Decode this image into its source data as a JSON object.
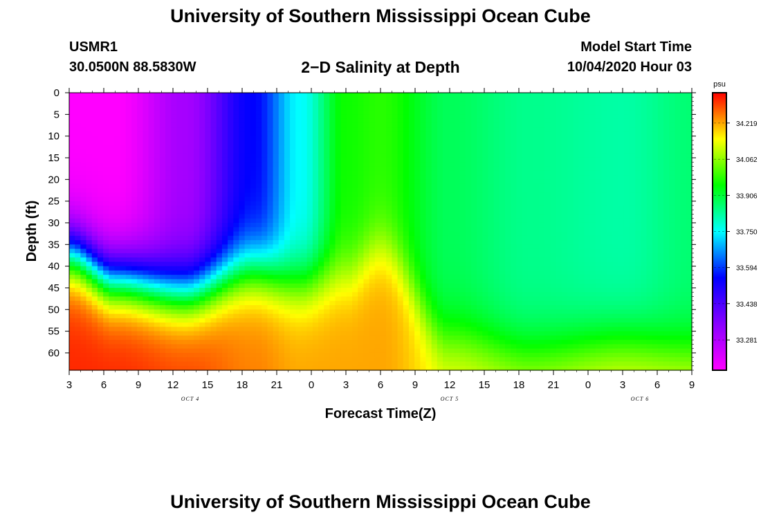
{
  "page": {
    "top_title": "University of Southern Mississippi Ocean Cube",
    "bottom_title": "University of Southern Mississippi Ocean Cube",
    "station_id": "USMR1",
    "station_coords": "30.0500N 88.5830W",
    "chart_title": "2−D Salinity at Depth",
    "model_start_label": "Model Start Time",
    "model_start_value": "10/04/2020 Hour 03"
  },
  "colors": {
    "colorbar_stops": [
      "#ff00ff",
      "#8800ff",
      "#0000ff",
      "#00ffff",
      "#00ff00",
      "#ffff00",
      "#ff0000"
    ]
  },
  "chart_data": {
    "type": "heatmap",
    "title": "2−D Salinity at Depth",
    "xlabel": "Forecast Time(Z)",
    "ylabel": "Depth (ft)",
    "x_tick_labels": [
      "3",
      "6",
      "9",
      "12",
      "15",
      "18",
      "21",
      "0",
      "3",
      "6",
      "9",
      "12",
      "15",
      "18",
      "21",
      "0",
      "3",
      "6",
      "9"
    ],
    "x_date_labels": [
      {
        "label": "OCT 4",
        "tick_index": 3.5
      },
      {
        "label": "OCT 5",
        "tick_index": 11
      },
      {
        "label": "OCT 6",
        "tick_index": 16.5
      }
    ],
    "x_range_hours": [
      0,
      54
    ],
    "y_ticks": [
      0,
      5,
      10,
      15,
      20,
      25,
      30,
      35,
      40,
      45,
      50,
      55,
      60
    ],
    "y_range_ft": [
      0,
      64
    ],
    "y_inverted": true,
    "colorbar": {
      "unit": "psu",
      "ticks": [
        "34.219",
        "34.062",
        "33.906",
        "33.750",
        "33.594",
        "33.438",
        "33.281"
      ],
      "tick_values": [
        34.219,
        34.062,
        33.906,
        33.75,
        33.594,
        33.438,
        33.281
      ],
      "range": [
        33.15,
        34.35
      ]
    },
    "field_profiles": [
      {
        "hour": 0,
        "s_surface": 33.15,
        "s_bottom": 34.32,
        "halocline_ft": 37
      },
      {
        "hour": 4,
        "s_surface": 33.15,
        "s_bottom": 34.32,
        "halocline_ft": 43
      },
      {
        "hour": 10,
        "s_surface": 33.3,
        "s_bottom": 34.3,
        "halocline_ft": 46
      },
      {
        "hour": 16,
        "s_surface": 33.55,
        "s_bottom": 34.25,
        "halocline_ft": 41
      },
      {
        "hour": 20,
        "s_surface": 33.75,
        "s_bottom": 34.22,
        "halocline_ft": 44
      },
      {
        "hour": 24,
        "s_surface": 33.96,
        "s_bottom": 34.22,
        "halocline_ft": 42
      },
      {
        "hour": 27,
        "s_surface": 33.98,
        "s_bottom": 34.22,
        "halocline_ft": 36
      },
      {
        "hour": 33,
        "s_surface": 33.88,
        "s_bottom": 34.15,
        "halocline_ft": 57
      },
      {
        "hour": 40,
        "s_surface": 33.84,
        "s_bottom": 34.12,
        "halocline_ft": 60
      },
      {
        "hour": 48,
        "s_surface": 33.82,
        "s_bottom": 34.15,
        "halocline_ft": 58
      },
      {
        "hour": 54,
        "s_surface": 33.86,
        "s_bottom": 34.15,
        "halocline_ft": 60
      }
    ]
  }
}
